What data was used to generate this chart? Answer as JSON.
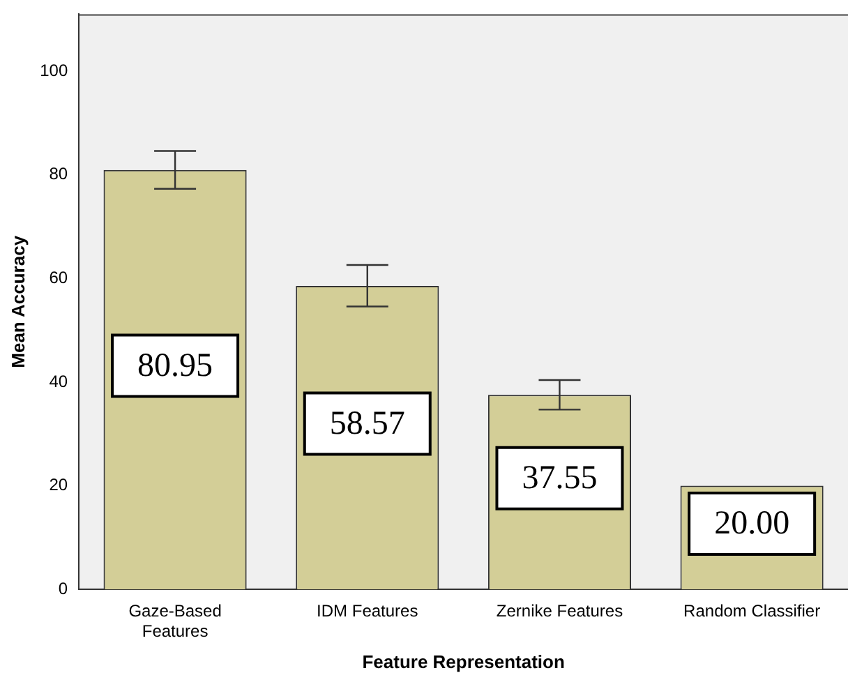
{
  "chart_data": {
    "type": "bar",
    "xlabel": "Feature Representation",
    "ylabel": "Mean Accuracy",
    "categories": [
      "Gaze-Based Features",
      "IDM Features",
      "Zernike Features",
      "Random Classifier"
    ],
    "values": [
      80.95,
      58.57,
      37.55,
      20.0
    ],
    "value_labels": [
      "80.95",
      "58.57",
      "37.55",
      "20.00"
    ],
    "errors": [
      [
        77.3,
        84.6
      ],
      [
        54.6,
        62.6
      ],
      [
        34.7,
        40.4
      ],
      null
    ],
    "color": "#d3ce97",
    "ylim": [
      0,
      111
    ],
    "yticks": [
      0,
      20,
      40,
      60,
      80,
      100
    ],
    "grid": false,
    "legend": false
  }
}
